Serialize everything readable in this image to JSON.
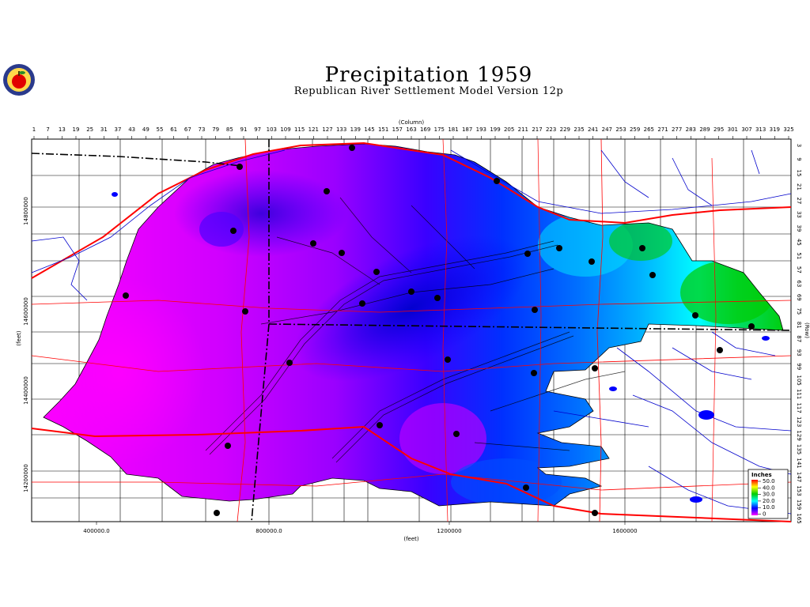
{
  "title": "Precipitation  1959",
  "subtitle": "Republican River Settlement Model Version 12p",
  "axes": {
    "column_label": "(Column)",
    "row_label": "(Row)",
    "x_label": "(feet)",
    "y_label": "(feet)",
    "column_ticks": [
      "1",
      "7",
      "13",
      "19",
      "25",
      "31",
      "37",
      "43",
      "49",
      "55",
      "61",
      "67",
      "73",
      "79",
      "85",
      "91",
      "97",
      "103",
      "109",
      "115",
      "121",
      "127",
      "133",
      "139",
      "145",
      "151",
      "157",
      "163",
      "169",
      "175",
      "181",
      "187",
      "193",
      "199",
      "205",
      "211",
      "217",
      "223",
      "229",
      "235",
      "241",
      "247",
      "253",
      "259",
      "265",
      "271",
      "277",
      "283",
      "289",
      "295",
      "301",
      "307",
      "313",
      "319",
      "325"
    ],
    "row_ticks": [
      "3",
      "9",
      "15",
      "21",
      "27",
      "33",
      "39",
      "45",
      "51",
      "57",
      "63",
      "69",
      "75",
      "81",
      "87",
      "93",
      "99",
      "105",
      "111",
      "117",
      "123",
      "129",
      "135",
      "141",
      "147",
      "153",
      "159",
      "165"
    ],
    "x_ticks": [
      "400000.0",
      "800000.0",
      "1200000",
      "1600000"
    ],
    "y_ticks": [
      "14800000",
      "14600000",
      "14400000",
      "14200000"
    ]
  },
  "legend": {
    "title": "Inches",
    "entries": [
      {
        "label": "50.0",
        "color": "#ff0000"
      },
      {
        "label": "40.0",
        "color": "#ffff00"
      },
      {
        "label": "30.0",
        "color": "#00cc00"
      },
      {
        "label": "20.0",
        "color": "#00ffff"
      },
      {
        "label": "10.0",
        "color": "#0000ff"
      },
      {
        "label": "0",
        "color": "#ff00ff"
      }
    ]
  },
  "colors": {
    "magenta": "#ff00ff",
    "violet": "#9a00ff",
    "blue": "#0000ff",
    "mid_blue": "#0070ff",
    "cyan": "#00ffff",
    "green": "#00cc00",
    "roads": "#ff0000",
    "streams": "#0000cc"
  }
}
